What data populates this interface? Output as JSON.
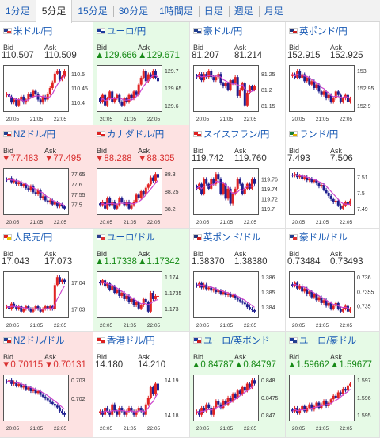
{
  "tabs": [
    {
      "label": "1分足",
      "active": false
    },
    {
      "label": "5分足",
      "active": true
    },
    {
      "label": "15分足",
      "active": false
    },
    {
      "label": "30分足",
      "active": false
    },
    {
      "label": "1時間足",
      "active": false
    },
    {
      "label": "日足",
      "active": false
    },
    {
      "label": "週足",
      "active": false
    },
    {
      "label": "月足",
      "active": false
    }
  ],
  "labels": {
    "bid": "Bid",
    "ask": "Ask"
  },
  "colors": {
    "link": "#1a5bb5",
    "up_bg": "#e6fae6",
    "down_bg": "#fde2e2",
    "up_text": "#178a17",
    "down_text": "#d93030",
    "candle": "#1f1f8f",
    "candle_up": "#e02424",
    "ma": "#cc44cc"
  },
  "pairs": [
    {
      "name": "米ドル/円",
      "flag": "usd-flag-icon",
      "bid": "110.507",
      "ask": "110.509",
      "state": "none",
      "ticks": [
        "110.5",
        "110.45",
        "110.4"
      ],
      "x_labels": [
        "20:05",
        "21:05",
        "22:05"
      ],
      "trend": [
        110.43,
        110.42,
        110.4,
        110.41,
        110.39,
        110.41,
        110.42,
        110.4,
        110.41,
        110.43,
        110.42,
        110.44,
        110.43,
        110.41,
        110.4,
        110.42,
        110.41,
        110.43,
        110.45,
        110.47,
        110.5,
        110.51,
        110.48,
        110.49,
        110.51
      ]
    },
    {
      "name": "ユーロ/円",
      "flag": "eur-flag-icon",
      "bid": "▲129.666",
      "ask": "▲129.671",
      "state": "up",
      "ticks": [
        "129.7",
        "129.65",
        "129.6"
      ],
      "x_labels": [
        "20:05",
        "21:05",
        "22:05"
      ],
      "trend": [
        129.61,
        129.63,
        129.6,
        129.62,
        129.64,
        129.61,
        129.62,
        129.63,
        129.61,
        129.6,
        129.62,
        129.61,
        129.63,
        129.62,
        129.64,
        129.63,
        129.66,
        129.68,
        129.7,
        129.67,
        129.69,
        129.68,
        129.7,
        129.68,
        129.67
      ]
    },
    {
      "name": "豪ドル/円",
      "flag": "aud-flag-icon",
      "bid": "81.207",
      "ask": "81.214",
      "state": "none",
      "ticks": [
        "81.25",
        "81.2",
        "81.15"
      ],
      "x_labels": [
        "20:05",
        "21:05",
        "22:05"
      ],
      "trend": [
        81.24,
        81.25,
        81.23,
        81.25,
        81.24,
        81.26,
        81.24,
        81.23,
        81.24,
        81.25,
        81.22,
        81.21,
        81.22,
        81.2,
        81.23,
        81.22,
        81.24,
        81.18,
        81.2,
        81.22,
        81.15,
        81.19,
        81.21,
        81.2,
        81.21
      ]
    },
    {
      "name": "英ポンド/円",
      "flag": "gbp-flag-icon",
      "bid": "152.915",
      "ask": "152.925",
      "state": "none",
      "ticks": [
        "153",
        "152.95",
        "152.9"
      ],
      "x_labels": [
        "20:05",
        "21:05",
        "22:05"
      ],
      "trend": [
        152.99,
        152.98,
        153.0,
        152.98,
        152.99,
        152.97,
        152.98,
        152.96,
        152.97,
        152.95,
        152.96,
        152.94,
        152.93,
        152.94,
        152.92,
        152.93,
        152.91,
        152.92,
        152.94,
        152.93,
        152.91,
        152.92,
        152.93,
        152.91,
        152.92
      ]
    },
    {
      "name": "NZドル/円",
      "flag": "nzd-flag-icon",
      "bid": "▼77.483",
      "ask": "▼77.495",
      "state": "down",
      "ticks": [
        "77.65",
        "77.6",
        "77.55",
        "77.5"
      ],
      "x_labels": [
        "20:05",
        "21:05",
        "22:05"
      ],
      "trend": [
        77.62,
        77.63,
        77.61,
        77.62,
        77.6,
        77.61,
        77.59,
        77.6,
        77.58,
        77.57,
        77.59,
        77.56,
        77.55,
        77.57,
        77.53,
        77.54,
        77.52,
        77.51,
        77.52,
        77.5,
        77.51,
        77.49,
        77.5,
        77.49,
        77.48
      ]
    },
    {
      "name": "カナダドル/円",
      "flag": "cad-flag-icon",
      "bid": "▼88.288",
      "ask": "▼88.305",
      "state": "down",
      "ticks": [
        "88.3",
        "88.25",
        "88.2"
      ],
      "x_labels": [
        "20:05",
        "21:05",
        "22:05"
      ],
      "trend": [
        88.21,
        88.22,
        88.2,
        88.23,
        88.21,
        88.22,
        88.2,
        88.21,
        88.23,
        88.22,
        88.21,
        88.22,
        88.2,
        88.21,
        88.22,
        88.24,
        88.23,
        88.25,
        88.24,
        88.26,
        88.27,
        88.29,
        88.28,
        88.3,
        88.29
      ]
    },
    {
      "name": "スイスフラン/円",
      "flag": "chf-flag-icon",
      "bid": "119.742",
      "ask": "119.760",
      "state": "none",
      "ticks": [
        "119.76",
        "119.74",
        "119.72",
        "119.7"
      ],
      "x_labels": [
        "20:05",
        "21:05",
        "22:05"
      ],
      "trend": [
        119.74,
        119.75,
        119.73,
        119.76,
        119.75,
        119.74,
        119.76,
        119.75,
        119.77,
        119.76,
        119.73,
        119.75,
        119.72,
        119.74,
        119.71,
        119.73,
        119.74,
        119.76,
        119.75,
        119.73,
        119.74,
        119.75,
        119.74,
        119.76,
        119.75
      ]
    },
    {
      "name": "ランド/円",
      "flag": "zar-flag-icon",
      "bid": "7.493",
      "ask": "7.506",
      "state": "none",
      "ticks": [
        "7.51",
        "7.5",
        "7.49"
      ],
      "x_labels": [
        "20:05",
        "21:05",
        "22:05"
      ],
      "trend": [
        7.511,
        7.512,
        7.51,
        7.511,
        7.509,
        7.51,
        7.508,
        7.509,
        7.507,
        7.508,
        7.506,
        7.504,
        7.505,
        7.502,
        7.5,
        7.498,
        7.496,
        7.494,
        7.495,
        7.492,
        7.49,
        7.492,
        7.494,
        7.493,
        7.495
      ]
    },
    {
      "name": "人民元/円",
      "flag": "cny-flag-icon",
      "bid": "17.043",
      "ask": "17.073",
      "state": "none",
      "ticks": [
        "17.04",
        "17.03"
      ],
      "x_labels": [
        "20:05",
        "21:05",
        "22:05"
      ],
      "trend": [
        17.031,
        17.03,
        17.032,
        17.031,
        17.03,
        17.031,
        17.029,
        17.03,
        17.031,
        17.03,
        17.029,
        17.03,
        17.031,
        17.03,
        17.029,
        17.03,
        17.031,
        17.03,
        17.031,
        17.03,
        17.039,
        17.042,
        17.04,
        17.041,
        17.04
      ]
    },
    {
      "name": "ユーロ/ドル",
      "flag": "eur-usd-flag-icon",
      "bid": "▲1.17338",
      "ask": "▲1.17342",
      "state": "up",
      "ticks": [
        "1.174",
        "1.1735",
        "1.173"
      ],
      "x_labels": [
        "20:05",
        "21:05",
        "22:05"
      ],
      "trend": [
        1.1738,
        1.1739,
        1.1737,
        1.1738,
        1.1736,
        1.1737,
        1.1735,
        1.1736,
        1.1734,
        1.1735,
        1.1733,
        1.1734,
        1.1732,
        1.1733,
        1.1731,
        1.1732,
        1.173,
        1.1731,
        1.1733,
        1.1732,
        1.1729,
        1.1735,
        1.1733,
        1.1734,
        1.1734
      ]
    },
    {
      "name": "英ポンド/ドル",
      "flag": "gbp-usd-flag-icon",
      "bid": "1.38370",
      "ask": "1.38380",
      "state": "none",
      "ticks": [
        "1.386",
        "1.385",
        "1.384"
      ],
      "x_labels": [
        "20:05",
        "21:05",
        "22:05"
      ],
      "trend": [
        1.3854,
        1.3856,
        1.3853,
        1.3855,
        1.3852,
        1.3853,
        1.3851,
        1.3852,
        1.385,
        1.3851,
        1.3849,
        1.385,
        1.3848,
        1.3849,
        1.3847,
        1.3848,
        1.3846,
        1.3845,
        1.3844,
        1.3843,
        1.3842,
        1.384,
        1.3839,
        1.3838,
        1.3837
      ]
    },
    {
      "name": "豪ドル/ドル",
      "flag": "aud-usd-flag-icon",
      "bid": "0.73484",
      "ask": "0.73493",
      "state": "none",
      "ticks": [
        "0.736",
        "0.7355",
        "0.735"
      ],
      "x_labels": [
        "20:05",
        "21:05",
        "22:05"
      ],
      "trend": [
        0.7357,
        0.7358,
        0.7356,
        0.7357,
        0.7355,
        0.7356,
        0.7354,
        0.7355,
        0.7353,
        0.7354,
        0.7352,
        0.7353,
        0.7351,
        0.7352,
        0.735,
        0.7351,
        0.7349,
        0.735,
        0.7351,
        0.7349,
        0.7348,
        0.7349,
        0.735,
        0.7348,
        0.7349
      ]
    },
    {
      "name": "NZドル/ドル",
      "flag": "nzd-usd-flag-icon",
      "bid": "▼0.70115",
      "ask": "▼0.70131",
      "state": "down",
      "ticks": [
        "0.703",
        "0.702"
      ],
      "x_labels": [
        "20:05",
        "21:05",
        "22:05"
      ],
      "trend": [
        0.7029,
        0.703,
        0.7028,
        0.7029,
        0.7027,
        0.7028,
        0.7026,
        0.7027,
        0.7025,
        0.7026,
        0.7024,
        0.7025,
        0.7023,
        0.7024,
        0.7022,
        0.7021,
        0.702,
        0.7019,
        0.7018,
        0.7017,
        0.7016,
        0.7015,
        0.7013,
        0.7012,
        0.7011
      ]
    },
    {
      "name": "香港ドル/円",
      "flag": "hkd-flag-icon",
      "bid": "14.180",
      "ask": "14.210",
      "state": "none",
      "ticks": [
        "14.19",
        "14.18"
      ],
      "x_labels": [
        "20:05",
        "21:05",
        "22:05"
      ],
      "trend": [
        14.181,
        14.18,
        14.182,
        14.181,
        14.18,
        14.183,
        14.181,
        14.18,
        14.182,
        14.181,
        14.18,
        14.181,
        14.182,
        14.181,
        14.18,
        14.181,
        14.182,
        14.181,
        14.18,
        14.183,
        14.185,
        14.188,
        14.186,
        14.189,
        14.187
      ]
    },
    {
      "name": "ユーロ/英ポンド",
      "flag": "eur-gbp-flag-icon",
      "bid": "▲0.84787",
      "ask": "▲0.84797",
      "state": "up",
      "ticks": [
        "0.848",
        "0.8475",
        "0.847"
      ],
      "x_labels": [
        "20:05",
        "21:05",
        "22:05"
      ],
      "trend": [
        0.8471,
        0.847,
        0.8472,
        0.8471,
        0.8473,
        0.8472,
        0.847,
        0.8472,
        0.8474,
        0.8473,
        0.8472,
        0.8474,
        0.8473,
        0.8475,
        0.8474,
        0.8476,
        0.8475,
        0.8477,
        0.8476,
        0.8478,
        0.8477,
        0.8479,
        0.8478,
        0.848,
        0.8479
      ]
    },
    {
      "name": "ユーロ/豪ドル",
      "flag": "eur-aud-flag-icon",
      "bid": "▲1.59662",
      "ask": "▲1.59677",
      "state": "up",
      "ticks": [
        "1.597",
        "1.596",
        "1.595"
      ],
      "x_labels": [
        "20:05",
        "21:05",
        "22:05"
      ],
      "trend": [
        1.5952,
        1.5954,
        1.5951,
        1.5953,
        1.5955,
        1.5952,
        1.5954,
        1.5956,
        1.5953,
        1.5955,
        1.5957,
        1.5954,
        1.5956,
        1.5958,
        1.5955,
        1.5957,
        1.5959,
        1.5961,
        1.596,
        1.5963,
        1.5962,
        1.5965,
        1.5964,
        1.5967,
        1.5968
      ]
    }
  ]
}
